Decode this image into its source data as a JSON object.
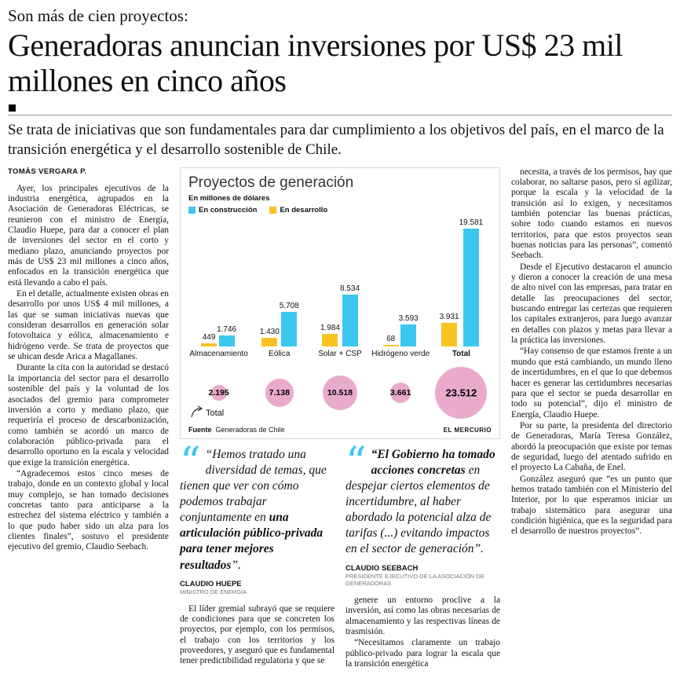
{
  "theme": {
    "accent_cyan": "#3cc7f0",
    "bar_yellow": "#f9c422",
    "circle_pink": "#eaaacb"
  },
  "header": {
    "kicker": "Son más de cien proyectos:",
    "headline": "Generadoras anuncian inversiones por US$ 23 mil millones en cinco años",
    "subhead": "Se trata de iniciativas que son fundamentales para dar cumplimiento a los objetivos del país, en el marco de la transición energética y el desarrollo sostenible de Chile.",
    "byline": "TOMÁS VERGARA P."
  },
  "left_column": {
    "paragraphs": [
      "Ayer, los principales ejecutivos de la industria energética, agrupados en la Asociación de Generadoras Eléctricas, se reunieron con el ministro de Energía, Claudio Huepe, para dar a conocer el plan de inversiones del sector en el corto y mediano plazo, anunciando proyectos por más de US$ 23 mil millones a cinco años, enfocados en la transición energética que está llevando a cabo el país.",
      "En el detalle, actualmente existen obras en desarrollo por unos US$ 4 mil millones, a las que se suman iniciativas nuevas que consideran desarrollos en generación solar fotovoltaica y eólica, almacenamiento e hidrógeno verde. Se trata de proyectos que se ubican desde Arica a Magallanes.",
      "Durante la cita con la autoridad se destacó la importancia del sector para el desarrollo sostenible del país y la voluntad de los asociados del gremio para comprometer inversión a corto y mediano plazo, que requeriría el proceso de descarbonización, como también se acordó un marco de colaboración público-privada para el desarrollo oportuno en la escala y velocidad que exige la transición energética.",
      "“Agradecemos estos cinco meses de trabajo, donde en un contexto global y local muy complejo, se han tomado decisiones concretas tanto para anticiparse a la estrechez del sistema eléctrico y también a lo que pudo haber sido un alza para los clientes finales”, sostuvo el presidente ejecutivo del gremio, Claudio Seebach."
    ]
  },
  "chart_data": {
    "type": "bar",
    "title": "Proyectos de generación",
    "subtitle": "En millones de dólares",
    "legend": [
      {
        "label": "En construcción",
        "color": "#3cc7f0"
      },
      {
        "label": "En desarrollo",
        "color": "#f9c422"
      }
    ],
    "categories": [
      "Almacenamiento",
      "Eólica",
      "Solar + CSP",
      "Hidrógeno verde",
      "Total"
    ],
    "series": [
      {
        "name": "En desarrollo",
        "values": [
          449,
          1430,
          1984,
          68,
          3931
        ],
        "labels": [
          "449",
          "1.430",
          "1.984",
          "68",
          "3.931"
        ]
      },
      {
        "name": "En construcción",
        "values": [
          1746,
          5708,
          8534,
          3593,
          19581
        ],
        "labels": [
          "1.746",
          "5.708",
          "8.534",
          "3.593",
          "19.581"
        ]
      }
    ],
    "totals": {
      "label": "Total",
      "values": [
        2195,
        7138,
        10518,
        3661,
        23512
      ],
      "labels": [
        "2.195",
        "7.138",
        "10.518",
        "3.661",
        "23.512"
      ]
    },
    "source_label": "Fuente",
    "source": "Generadoras de Chile",
    "credit": "EL MERCURIO"
  },
  "quotes": [
    {
      "pre": "“Hemos tratado una diversidad de temas, que tienen que ver con cómo podemos trabajar conjuntamente en ",
      "bold": "una articulación público-privada para tener mejores resultados",
      "post": "”.",
      "author": "CLAUDIO HUEPE",
      "role": "MINISTRO DE ENERGÍA"
    },
    {
      "pre": "",
      "bold": "“El Gobierno ha tomado acciones concretas",
      "post": " en despejar ciertos elementos de incertidumbre, al haber abordado la potencial alza de tarifas (...) evitando impactos en el sector de generación”.",
      "author": "CLAUDIO SEEBACH",
      "role": "PRESIDENTE EJECUTIVO DE LA ASOCIACIÓN DE GENERADORAS"
    }
  ],
  "mid_columns": [
    {
      "paragraphs": [
        "El líder gremial subrayó que se requiere de condiciones para que se concreten los proyectos, por ejemplo, con los permisos, el trabajo con los territorios y los proveedores, y aseguró que es fundamental tener predictibilidad regulatoria y que se"
      ]
    },
    {
      "paragraphs": [
        "genere un entorno proclive a la inversión, así como las obras necesarias de almacenamiento y las respectivas líneas de trasmisión.",
        "“Necesitamos claramente un trabajo público-privado para lograr la escala que la transición energética"
      ]
    }
  ],
  "right_column": {
    "paragraphs": [
      "necesita, a través de los permisos, hay que colaborar, no saltarse pasos, pero sí agilizar, porque la escala y la velocidad de la transición así lo exigen, y necesitamos también potenciar las buenas prácticas, sobre todo cuando estamos en nuevos territorios, para que estos proyectos sean buenas noticias para las personas”, comentó Seebach.",
      "Desde el Ejecutivo destacaron el anuncio y dieron a conocer la creación de una mesa de alto nivel con las empresas, para tratar en detalle las preocupaciones del sector, buscando entregar las certezas que requieren los capitales extranjeros, para luego avanzar en detalles con plazos y metas para llevar a la práctica las inversiones.",
      "“Hay consenso de que estamos frente a un mundo que está cambiando, un mundo lleno de incertidumbres, en el que lo que debemos hacer es generar las certidumbres necesarias para que el sector se pueda desarrollar en todo su potencial”, dijo el ministro de Energía, Claudio Huepe.",
      "Por su parte, la presidenta del directorio de Generadoras, María Teresa González, abordó la preocupación que existe por temas de seguridad, luego del atentado sufrido en el proyecto La Cabaña, de Enel.",
      "González aseguró que “es un punto que hemos tratado también con el Ministerio del Interior, por lo que esperamos iniciar un trabajo sistemático para asegurar una condición higiénica, que es la seguridad para el desarrollo de nuestros proyectos”."
    ]
  }
}
